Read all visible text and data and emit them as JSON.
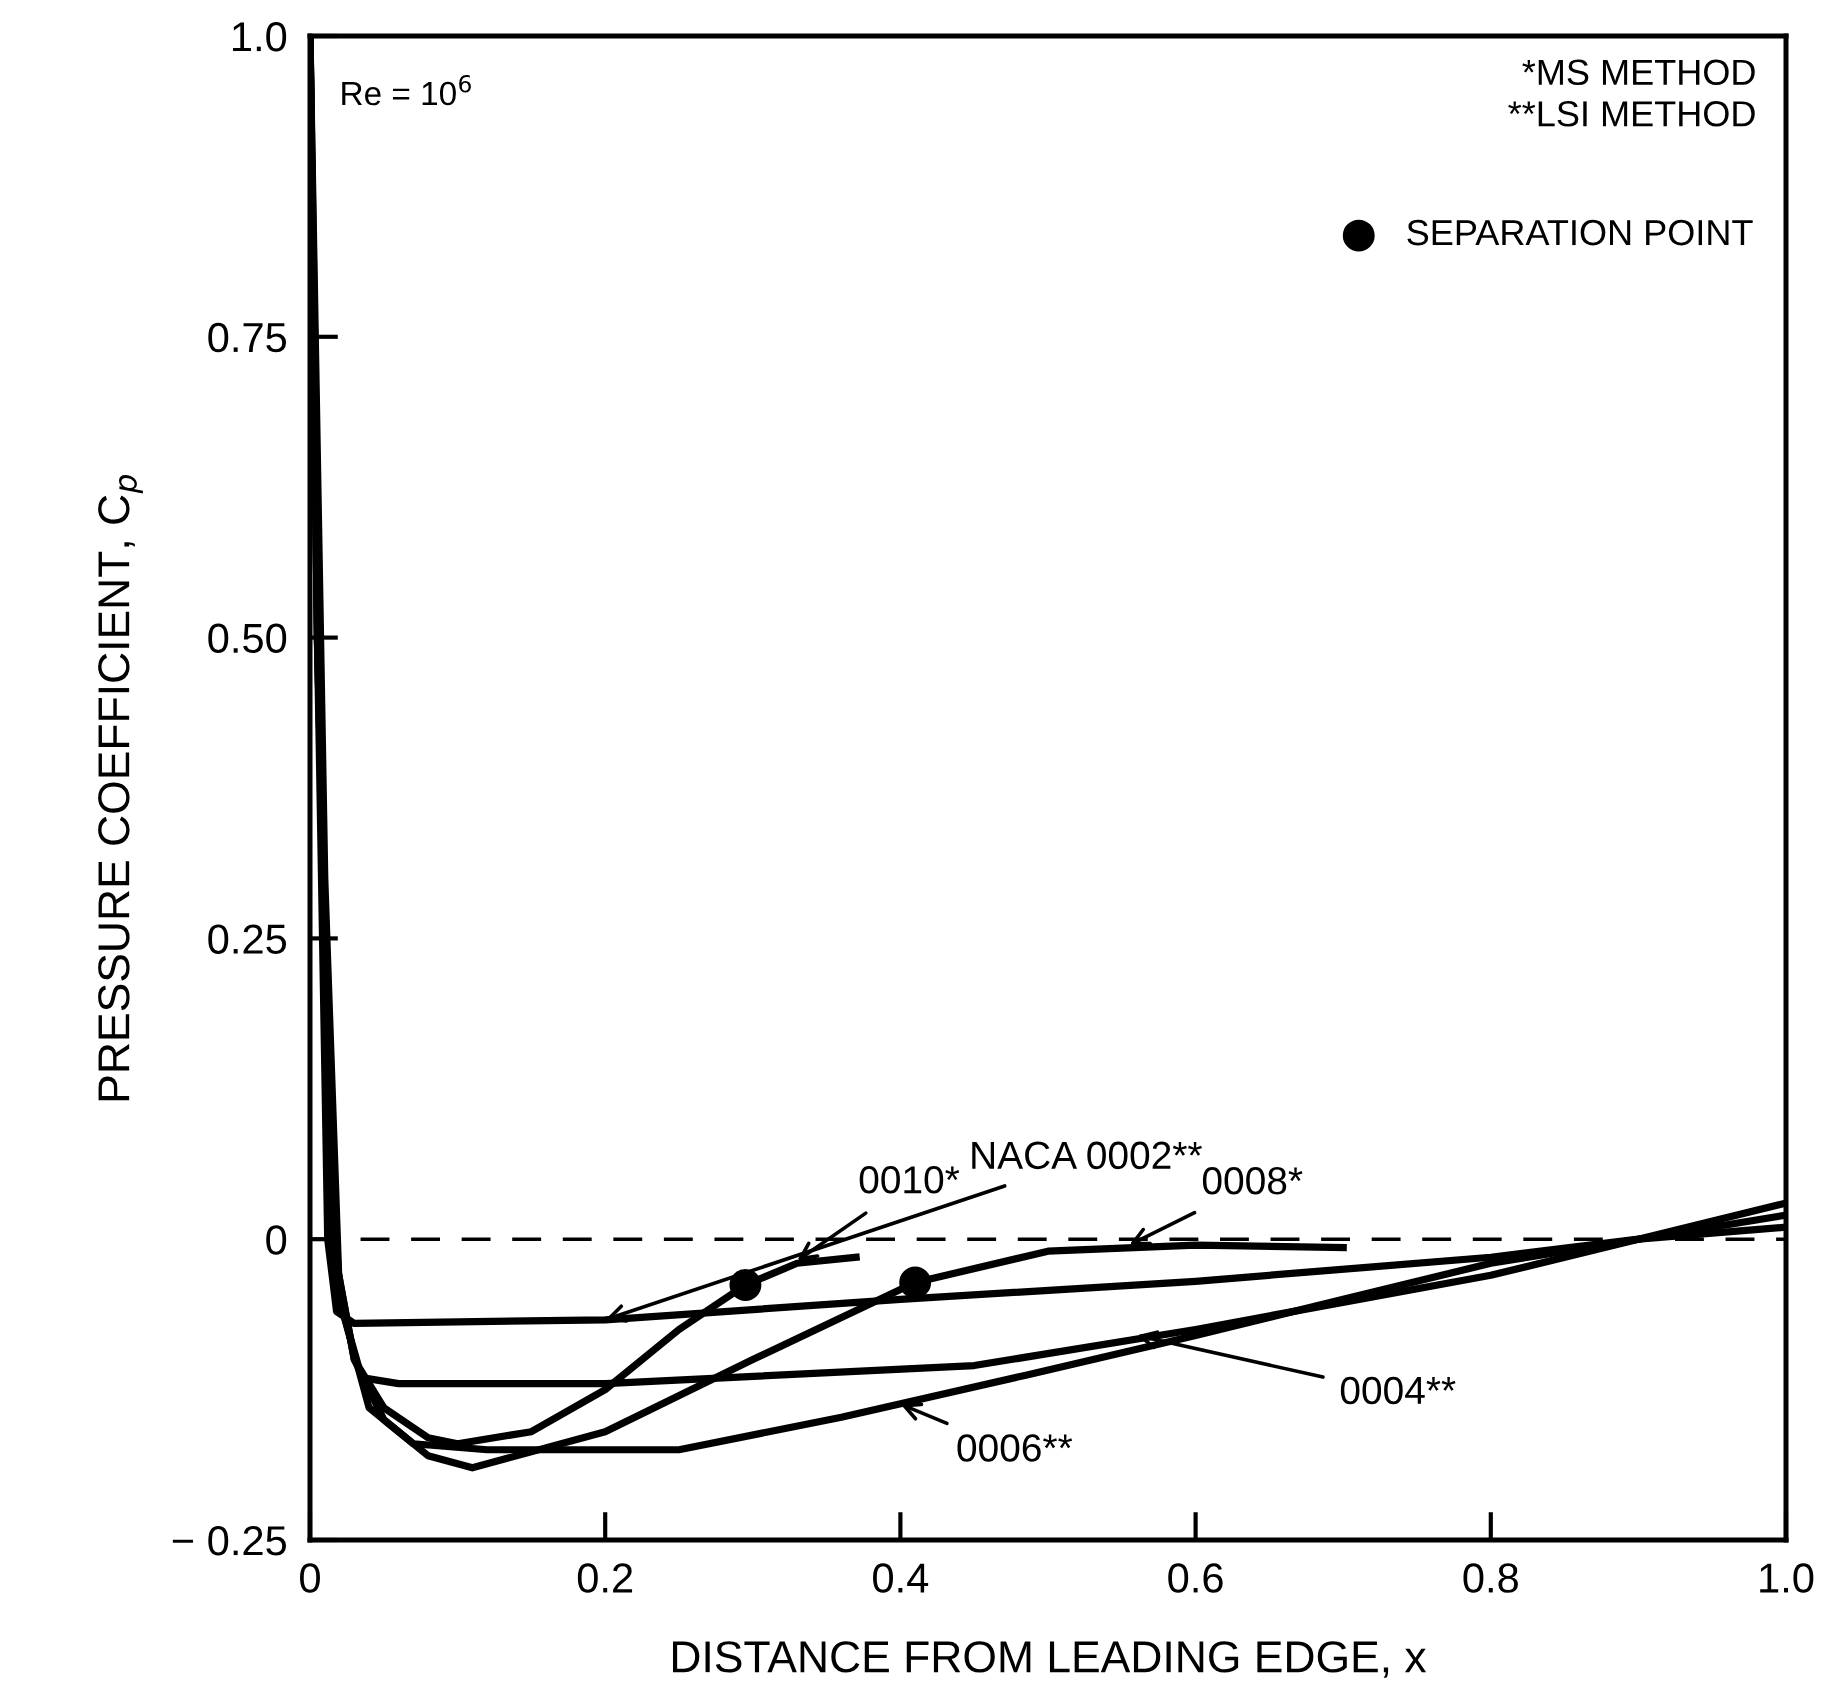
{
  "chart_data": {
    "type": "line",
    "xlabel": "DISTANCE FROM LEADING EDGE, x",
    "ylabel": "PRESSURE COEFFICIENT, C$_{p}$",
    "xlim": [
      0,
      1.0
    ],
    "xticks": [
      0,
      0.2,
      0.4,
      0.6,
      0.8,
      {
        "value": 1.0,
        "label": "1.0"
      }
    ],
    "ylim": [
      -0.25,
      1.0
    ],
    "yticks": [
      {
        "value": -0.25,
        "label": "− 0.25"
      },
      0,
      0.25,
      {
        "value": 0.5,
        "label": "0.50"
      },
      0.75,
      {
        "value": 1.0,
        "label": "1.0"
      }
    ],
    "grid": false,
    "legend": "top right",
    "ref_lines": [
      {
        "axis": "y",
        "value": 0,
        "line_style": "dashed",
        "color": "#000000"
      }
    ],
    "series": [
      {
        "color": "#000000",
        "x": [
          0,
          0.005,
          0.012,
          0.018,
          0.03,
          0.2,
          0.4,
          0.6,
          0.8,
          0.9,
          1.0
        ],
        "values": [
          1.0,
          0.5,
          0.0,
          -0.06,
          -0.07,
          -0.067,
          -0.05,
          -0.035,
          -0.015,
          0.0,
          0.01
        ]
      },
      {
        "color": "#000000",
        "x": [
          0,
          0.01,
          0.02,
          0.035,
          0.06,
          0.2,
          0.45,
          0.6,
          0.8,
          0.9,
          1.0
        ],
        "values": [
          1.0,
          0.3,
          -0.05,
          -0.115,
          -0.12,
          -0.12,
          -0.105,
          -0.075,
          -0.03,
          0.0,
          0.02
        ]
      },
      {
        "color": "#000000",
        "x": [
          0,
          0.01,
          0.02,
          0.04,
          0.07,
          0.12,
          0.25,
          0.36,
          0.485,
          0.6,
          0.7,
          0.8,
          0.9,
          1.0
        ],
        "values": [
          1.0,
          0.2,
          -0.05,
          -0.14,
          -0.17,
          -0.175,
          -0.175,
          -0.148,
          -0.113,
          -0.08,
          -0.05,
          -0.02,
          0.0,
          0.03
        ]
      },
      {
        "color": "#000000",
        "x": [
          0,
          0.005,
          0.015,
          0.03,
          0.05,
          0.08,
          0.11,
          0.2,
          0.3,
          0.41,
          0.5,
          0.6,
          0.7
        ],
        "values": [
          1.0,
          0.5,
          0.0,
          -0.1,
          -0.15,
          -0.18,
          -0.19,
          -0.16,
          -0.1,
          -0.036,
          -0.01,
          -0.005,
          -0.007
        ]
      },
      {
        "color": "#000000",
        "x": [
          0,
          0.005,
          0.015,
          0.03,
          0.05,
          0.08,
          0.1,
          0.15,
          0.2,
          0.25,
          0.295,
          0.33,
          0.37
        ],
        "values": [
          1.0,
          0.5,
          0.0,
          -0.1,
          -0.14,
          -0.165,
          -0.17,
          -0.16,
          -0.125,
          -0.075,
          -0.038,
          -0.02,
          -0.015
        ]
      },
      {
        "name": "SEPARATION POINT",
        "type": "scatter",
        "marker": "circle",
        "color": "#000000",
        "x": [
          0.295,
          0.41
        ],
        "values": [
          -0.038,
          -0.036
        ]
      }
    ],
    "annotations": [
      "Re = 10$^{6}$",
      "*MS METHOD\n**LSI METHOD",
      {
        "text": "NACA 0002**",
        "x": 0.2,
        "y": -0.067
      },
      {
        "text": "0010*",
        "x": 0.33,
        "y": -0.018
      },
      {
        "text": "0008*",
        "x": 0.555,
        "y": -0.005
      },
      {
        "text": "0004**",
        "x": 0.56,
        "y": -0.08
      },
      {
        "text": "0006**",
        "x": 0.4,
        "y": -0.137
      }
    ]
  }
}
